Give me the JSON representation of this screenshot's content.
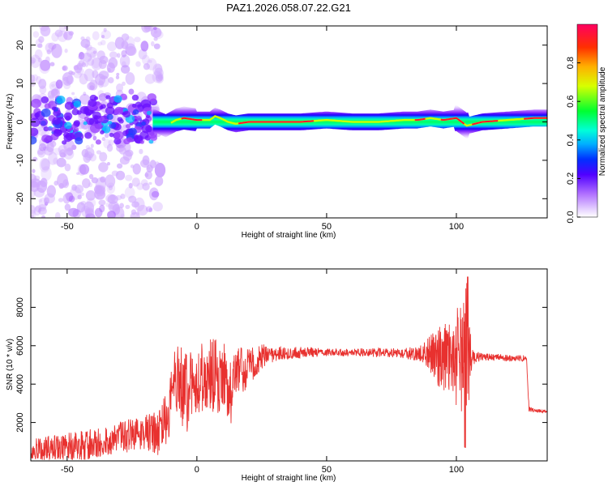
{
  "title": "PAZ1.2026.058.07.22.G21",
  "chart_data": [
    {
      "type": "heatmap",
      "name": "spectrogram",
      "xlabel": "Height of straight line (km)",
      "ylabel": "Frequency (Hz)",
      "xlim": [
        -64,
        135
      ],
      "ylim": [
        -25,
        25
      ],
      "xticks": [
        -50,
        0,
        50,
        100
      ],
      "yticks": [
        -20,
        -10,
        0,
        10,
        20
      ],
      "colorbar": {
        "label": "Normalized spectral amplitude",
        "range": [
          0,
          1
        ],
        "ticks": [
          0.0,
          0.2,
          0.4,
          0.6,
          0.8
        ],
        "tick_labels": [
          "0.0",
          "0.2",
          "0.4",
          "0.6",
          "0.8"
        ]
      },
      "ridge_profile": {
        "x": [
          -64,
          -50,
          -40,
          -30,
          -20,
          -17,
          -12,
          -8,
          -5,
          0,
          5,
          7,
          9,
          12,
          15,
          20,
          30,
          40,
          50,
          60,
          70,
          80,
          85,
          90,
          95,
          100,
          102,
          104,
          110,
          120,
          130,
          135
        ],
        "y": [
          1.5,
          1.0,
          1.5,
          1.0,
          1.0,
          0.5,
          -1.0,
          0.5,
          1.0,
          0.5,
          0.5,
          1.5,
          1.0,
          0.0,
          -0.5,
          0.0,
          0.0,
          0.0,
          0.5,
          0.0,
          0.0,
          0.5,
          0.5,
          1.0,
          0.5,
          1.0,
          0.0,
          -1.0,
          0.0,
          0.5,
          1.0,
          1.0
        ]
      }
    },
    {
      "type": "line",
      "name": "snr",
      "xlabel": "Height of straight line (km)",
      "ylabel": "SNR (10 * v/v)",
      "xlim": [
        -64,
        135
      ],
      "ylim": [
        0,
        10000
      ],
      "xticks": [
        -50,
        0,
        50,
        100
      ],
      "yticks": [
        2000,
        4000,
        6000,
        8000
      ],
      "color": "#e8312f",
      "envelope": {
        "x": [
          -64,
          -50,
          -40,
          -30,
          -20,
          -15,
          -11,
          -9,
          -7,
          -4,
          0,
          5,
          10,
          13,
          16,
          20,
          25,
          30,
          35,
          40,
          50,
          60,
          70,
          80,
          88,
          92,
          96,
          100,
          102,
          103,
          104,
          105,
          108,
          115,
          120,
          127,
          128,
          129,
          132,
          135
        ],
        "y": [
          500,
          700,
          900,
          1200,
          1500,
          1500,
          2500,
          4300,
          4000,
          3500,
          4200,
          4500,
          4300,
          3500,
          4500,
          5000,
          5400,
          5550,
          5600,
          5650,
          5650,
          5650,
          5650,
          5600,
          5600,
          5500,
          5400,
          5400,
          5400,
          5400,
          5400,
          5400,
          5400,
          5400,
          5350,
          5350,
          2700,
          2650,
          2600,
          2550
        ]
      },
      "noise": {
        "x": [
          -64,
          -20,
          -15,
          -10,
          -5,
          0,
          10,
          15,
          20,
          30,
          50,
          80,
          88,
          93,
          100,
          102,
          104,
          106,
          110,
          127,
          130,
          135
        ],
        "amp": [
          700,
          900,
          1200,
          1600,
          2200,
          1800,
          2000,
          1500,
          1000,
          400,
          200,
          250,
          600,
          1600,
          2500,
          3000,
          4500,
          400,
          200,
          150,
          80,
          80
        ]
      }
    }
  ]
}
